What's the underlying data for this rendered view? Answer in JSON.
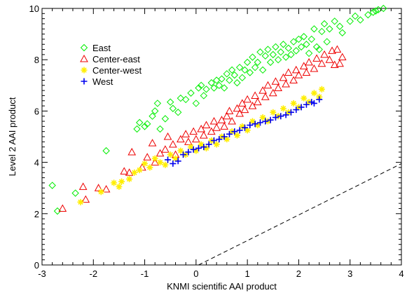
{
  "chart_data": {
    "type": "scatter",
    "title": "",
    "xlabel": "KNMI scientific AAI product",
    "ylabel": "Level 2 AAI product",
    "xlim": [
      -3,
      4
    ],
    "ylim": [
      0,
      10
    ],
    "xticks": [
      "-3",
      "-2",
      "-1",
      "0",
      "1",
      "2",
      "3",
      "4"
    ],
    "yticks": [
      "0",
      "2",
      "4",
      "6",
      "8",
      "10"
    ],
    "grid": false,
    "legend_position": "top-left",
    "series": [
      {
        "name": "East",
        "marker": "diamond",
        "color": "#00ee00",
        "points": [
          [
            -2.8,
            3.1
          ],
          [
            -2.7,
            2.1
          ],
          [
            -2.35,
            2.8
          ],
          [
            -1.75,
            4.45
          ],
          [
            -1.15,
            5.3
          ],
          [
            -1.1,
            5.55
          ],
          [
            -1.0,
            5.4
          ],
          [
            -0.95,
            5.5
          ],
          [
            -0.85,
            5.8
          ],
          [
            -0.8,
            6.0
          ],
          [
            -0.75,
            6.3
          ],
          [
            -0.7,
            5.3
          ],
          [
            -0.6,
            5.7
          ],
          [
            -0.5,
            6.35
          ],
          [
            -0.45,
            6.1
          ],
          [
            -0.35,
            5.95
          ],
          [
            -0.3,
            6.5
          ],
          [
            -0.2,
            6.45
          ],
          [
            -0.1,
            6.7
          ],
          [
            0.0,
            6.3
          ],
          [
            0.05,
            6.9
          ],
          [
            0.1,
            7.0
          ],
          [
            0.15,
            6.6
          ],
          [
            0.2,
            6.85
          ],
          [
            0.3,
            7.1
          ],
          [
            0.35,
            6.9
          ],
          [
            0.4,
            7.2
          ],
          [
            0.45,
            7.0
          ],
          [
            0.5,
            7.25
          ],
          [
            0.55,
            6.9
          ],
          [
            0.6,
            7.45
          ],
          [
            0.65,
            7.2
          ],
          [
            0.7,
            7.6
          ],
          [
            0.75,
            7.4
          ],
          [
            0.8,
            7.1
          ],
          [
            0.85,
            7.7
          ],
          [
            0.9,
            7.3
          ],
          [
            0.95,
            7.6
          ],
          [
            1.0,
            7.9
          ],
          [
            1.05,
            7.5
          ],
          [
            1.1,
            8.1
          ],
          [
            1.15,
            7.7
          ],
          [
            1.2,
            7.9
          ],
          [
            1.25,
            8.3
          ],
          [
            1.3,
            7.6
          ],
          [
            1.35,
            8.15
          ],
          [
            1.4,
            8.4
          ],
          [
            1.45,
            7.9
          ],
          [
            1.5,
            8.2
          ],
          [
            1.55,
            8.5
          ],
          [
            1.6,
            8.0
          ],
          [
            1.65,
            8.3
          ],
          [
            1.7,
            8.6
          ],
          [
            1.75,
            8.1
          ],
          [
            1.8,
            8.45
          ],
          [
            1.85,
            8.2
          ],
          [
            1.9,
            8.7
          ],
          [
            1.95,
            8.35
          ],
          [
            2.0,
            8.8
          ],
          [
            2.05,
            8.5
          ],
          [
            2.1,
            8.9
          ],
          [
            2.15,
            8.6
          ],
          [
            2.2,
            8.25
          ],
          [
            2.25,
            8.8
          ],
          [
            2.3,
            9.2
          ],
          [
            2.35,
            8.5
          ],
          [
            2.4,
            8.4
          ],
          [
            2.45,
            9.1
          ],
          [
            2.5,
            9.4
          ],
          [
            2.55,
            8.7
          ],
          [
            2.6,
            9.2
          ],
          [
            2.7,
            9.5
          ],
          [
            2.8,
            9.3
          ],
          [
            2.85,
            9.05
          ],
          [
            3.0,
            9.5
          ],
          [
            3.1,
            9.7
          ],
          [
            3.2,
            9.55
          ],
          [
            3.35,
            9.75
          ],
          [
            3.45,
            9.85
          ],
          [
            3.5,
            9.9
          ],
          [
            3.55,
            9.95
          ],
          [
            3.65,
            10.0
          ]
        ]
      },
      {
        "name": "Center-east",
        "marker": "triangle",
        "color": "#ee0000",
        "points": [
          [
            -2.6,
            2.2
          ],
          [
            -2.2,
            3.05
          ],
          [
            -2.15,
            2.55
          ],
          [
            -1.9,
            3.0
          ],
          [
            -1.75,
            2.95
          ],
          [
            -1.4,
            3.65
          ],
          [
            -1.3,
            3.6
          ],
          [
            -1.25,
            4.4
          ],
          [
            -1.05,
            3.8
          ],
          [
            -0.95,
            4.2
          ],
          [
            -0.85,
            4.75
          ],
          [
            -0.8,
            4.0
          ],
          [
            -0.7,
            4.35
          ],
          [
            -0.6,
            4.5
          ],
          [
            -0.55,
            5.0
          ],
          [
            -0.45,
            4.7
          ],
          [
            -0.4,
            4.3
          ],
          [
            -0.3,
            4.9
          ],
          [
            -0.2,
            5.1
          ],
          [
            -0.15,
            4.8
          ],
          [
            -0.05,
            5.2
          ],
          [
            0.0,
            4.9
          ],
          [
            0.1,
            5.3
          ],
          [
            0.15,
            5.05
          ],
          [
            0.2,
            5.45
          ],
          [
            0.3,
            5.2
          ],
          [
            0.35,
            5.6
          ],
          [
            0.4,
            5.35
          ],
          [
            0.5,
            5.65
          ],
          [
            0.55,
            5.4
          ],
          [
            0.6,
            5.8
          ],
          [
            0.65,
            6.0
          ],
          [
            0.7,
            5.6
          ],
          [
            0.8,
            6.1
          ],
          [
            0.85,
            5.9
          ],
          [
            0.9,
            6.3
          ],
          [
            0.95,
            6.05
          ],
          [
            1.0,
            6.45
          ],
          [
            1.1,
            6.2
          ],
          [
            1.15,
            6.6
          ],
          [
            1.2,
            6.35
          ],
          [
            1.3,
            6.8
          ],
          [
            1.35,
            6.55
          ],
          [
            1.4,
            7.0
          ],
          [
            1.5,
            6.7
          ],
          [
            1.55,
            7.15
          ],
          [
            1.6,
            6.9
          ],
          [
            1.7,
            7.3
          ],
          [
            1.75,
            7.05
          ],
          [
            1.8,
            7.5
          ],
          [
            1.9,
            7.2
          ],
          [
            1.95,
            7.6
          ],
          [
            2.0,
            7.4
          ],
          [
            2.1,
            7.75
          ],
          [
            2.15,
            7.5
          ],
          [
            2.2,
            7.9
          ],
          [
            2.3,
            7.65
          ],
          [
            2.35,
            8.05
          ],
          [
            2.45,
            7.85
          ],
          [
            2.5,
            8.2
          ],
          [
            2.6,
            8.0
          ],
          [
            2.65,
            8.35
          ],
          [
            2.7,
            7.8
          ],
          [
            2.75,
            8.4
          ],
          [
            2.8,
            7.85
          ],
          [
            2.85,
            8.1
          ]
        ]
      },
      {
        "name": "Center-west",
        "marker": "asterisk",
        "color": "#ffee00",
        "points": [
          [
            -2.25,
            2.45
          ],
          [
            -1.85,
            2.85
          ],
          [
            -1.6,
            3.2
          ],
          [
            -1.5,
            3.05
          ],
          [
            -1.45,
            3.25
          ],
          [
            -1.3,
            3.35
          ],
          [
            -1.2,
            3.6
          ],
          [
            -1.1,
            3.7
          ],
          [
            -1.0,
            3.95
          ],
          [
            -0.9,
            3.8
          ],
          [
            -0.8,
            4.15
          ],
          [
            -0.7,
            4.0
          ],
          [
            -0.6,
            3.9
          ],
          [
            -0.5,
            4.3
          ],
          [
            -0.4,
            4.15
          ],
          [
            -0.3,
            4.45
          ],
          [
            -0.2,
            4.3
          ],
          [
            -0.1,
            4.6
          ],
          [
            0.0,
            4.45
          ],
          [
            0.1,
            4.7
          ],
          [
            0.2,
            4.55
          ],
          [
            0.3,
            4.85
          ],
          [
            0.4,
            4.7
          ],
          [
            0.5,
            5.0
          ],
          [
            0.6,
            4.9
          ],
          [
            0.7,
            5.2
          ],
          [
            0.8,
            5.05
          ],
          [
            0.9,
            5.4
          ],
          [
            1.0,
            5.25
          ],
          [
            1.1,
            5.6
          ],
          [
            1.2,
            5.45
          ],
          [
            1.3,
            5.75
          ],
          [
            1.4,
            5.6
          ],
          [
            1.5,
            5.95
          ],
          [
            1.6,
            5.8
          ],
          [
            1.7,
            6.1
          ],
          [
            1.8,
            5.95
          ],
          [
            1.9,
            6.3
          ],
          [
            2.0,
            6.15
          ],
          [
            2.1,
            6.5
          ],
          [
            2.2,
            6.35
          ],
          [
            2.3,
            6.7
          ],
          [
            2.4,
            6.55
          ],
          [
            2.45,
            6.85
          ]
        ]
      },
      {
        "name": "West",
        "marker": "plus",
        "color": "#0000ee",
        "points": [
          [
            -0.55,
            4.1
          ],
          [
            -0.45,
            3.95
          ],
          [
            -0.35,
            4.05
          ],
          [
            -0.25,
            4.3
          ],
          [
            -0.15,
            4.4
          ],
          [
            -0.05,
            4.5
          ],
          [
            0.05,
            4.55
          ],
          [
            0.15,
            4.6
          ],
          [
            0.25,
            4.7
          ],
          [
            0.35,
            4.85
          ],
          [
            0.45,
            4.9
          ],
          [
            0.55,
            5.0
          ],
          [
            0.65,
            5.1
          ],
          [
            0.75,
            5.2
          ],
          [
            0.85,
            5.25
          ],
          [
            0.95,
            5.35
          ],
          [
            1.05,
            5.45
          ],
          [
            1.15,
            5.5
          ],
          [
            1.25,
            5.55
          ],
          [
            1.35,
            5.6
          ],
          [
            1.45,
            5.65
          ],
          [
            1.55,
            5.75
          ],
          [
            1.65,
            5.8
          ],
          [
            1.75,
            5.85
          ],
          [
            1.85,
            5.95
          ],
          [
            1.95,
            6.05
          ],
          [
            2.05,
            6.15
          ],
          [
            2.15,
            6.25
          ],
          [
            2.25,
            6.35
          ],
          [
            2.3,
            6.3
          ],
          [
            2.4,
            6.45
          ]
        ]
      }
    ],
    "reference_line": {
      "style": "dashed",
      "points": [
        [
          0.05,
          0.0
        ],
        [
          4.0,
          3.95
        ]
      ]
    }
  }
}
